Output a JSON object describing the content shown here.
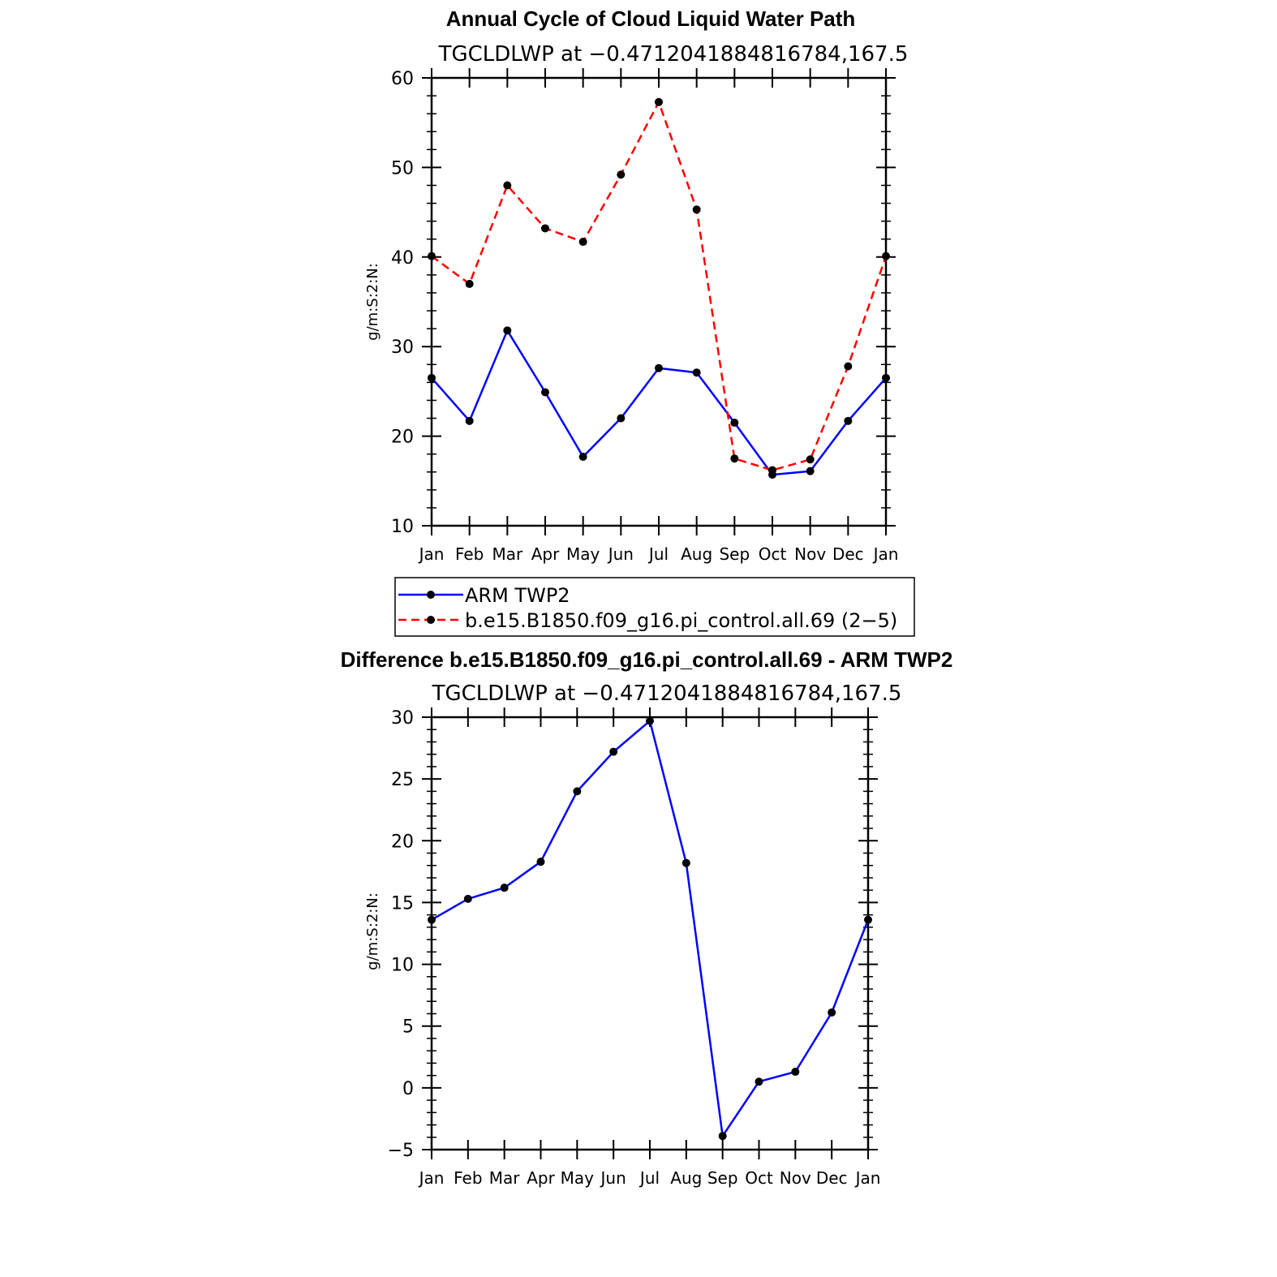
{
  "chart_data": [
    {
      "type": "line",
      "title": "Annual Cycle of Cloud Liquid Water Path",
      "subtitle": "TGCLDLWP at −0.4712041884816784,167.5",
      "ylabel": "g/m:S:2:N:",
      "xlabel": "",
      "categories": [
        "Jan",
        "Feb",
        "Mar",
        "Apr",
        "May",
        "Jun",
        "Jul",
        "Aug",
        "Sep",
        "Oct",
        "Nov",
        "Dec",
        "Jan"
      ],
      "ylim": [
        10,
        60
      ],
      "yticks": [
        "10",
        "20",
        "30",
        "40",
        "50",
        "60"
      ],
      "series": [
        {
          "name": "ARM TWP2",
          "color": "#0000ff",
          "dash": "solid",
          "values": [
            26.5,
            21.7,
            31.8,
            24.9,
            17.7,
            22.0,
            27.6,
            27.1,
            21.5,
            15.7,
            16.1,
            21.7,
            26.5
          ]
        },
        {
          "name": "b.e15.B1850.f09_g16.pi_control.all.69 (2−5)",
          "color": "#ff0000",
          "dash": "dashed",
          "values": [
            40.1,
            37.0,
            48.0,
            43.2,
            41.7,
            49.2,
            57.3,
            45.3,
            17.5,
            16.2,
            17.4,
            27.8,
            40.1
          ]
        }
      ],
      "legend_placement": "below"
    },
    {
      "type": "line",
      "title": "Difference b.e15.B1850.f09_g16.pi_control.all.69 - ARM TWP2",
      "subtitle": "TGCLDLWP at −0.4712041884816784,167.5",
      "ylabel": "g/m:S:2:N:",
      "xlabel": "",
      "categories": [
        "Jan",
        "Feb",
        "Mar",
        "Apr",
        "May",
        "Jun",
        "Jul",
        "Aug",
        "Sep",
        "Oct",
        "Nov",
        "Dec",
        "Jan"
      ],
      "ylim": [
        -5,
        30
      ],
      "yticks": [
        "−5",
        "0",
        "5",
        "10",
        "15",
        "20",
        "25",
        "30"
      ],
      "series": [
        {
          "name": "",
          "color": "#0000ff",
          "dash": "solid",
          "values": [
            13.6,
            15.3,
            16.2,
            18.3,
            24.0,
            27.2,
            29.7,
            18.2,
            -3.9,
            0.5,
            1.3,
            6.1,
            13.6
          ]
        }
      ]
    }
  ]
}
